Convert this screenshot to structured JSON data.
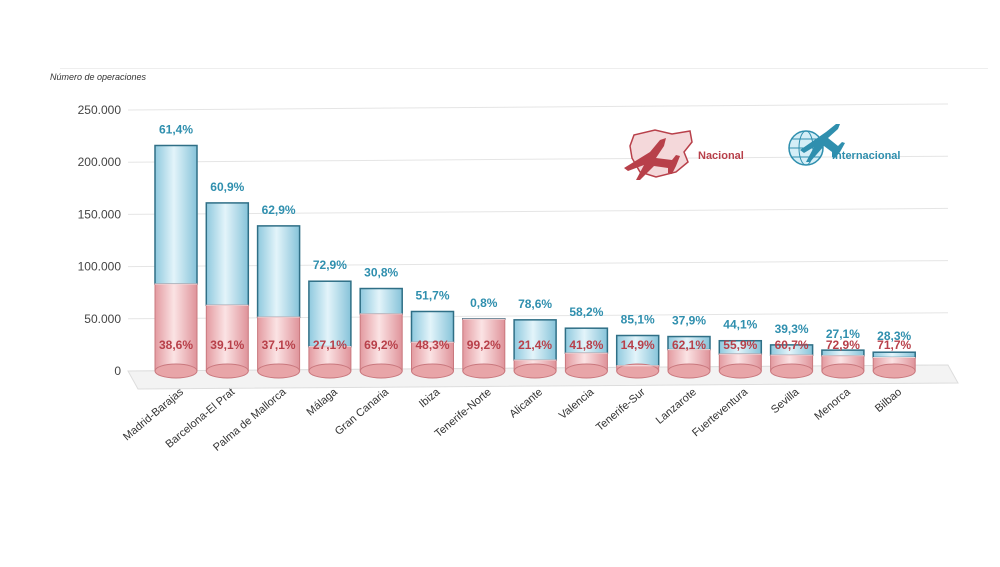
{
  "chart_data": {
    "type": "bar",
    "stacked": true,
    "ylabel": "Número de operaciones",
    "ylim": [
      0,
      250000
    ],
    "yticks": [
      0,
      50000,
      100000,
      150000,
      200000,
      250000
    ],
    "ytick_labels": [
      "0",
      "50.000",
      "100.000",
      "150.000",
      "200.000",
      "250.000"
    ],
    "grid": true,
    "legend_position": "top-right",
    "categories": [
      "Madrid-Barajas",
      "Barcelona-El Prat",
      "Palma de Mallorca",
      "Málaga",
      "Gran Canaria",
      "Ibiza",
      "Tenerife-Norte",
      "Alicante",
      "Valencia",
      "Tenerife-Sur",
      "Lanzarote",
      "Fuerteventura",
      "Sevilla",
      "Menorca",
      "Bilbao"
    ],
    "totals": [
      216000,
      161000,
      139000,
      86000,
      79000,
      57000,
      50000,
      49000,
      41000,
      34000,
      33000,
      29000,
      25000,
      20000,
      18000
    ],
    "series": [
      {
        "name": "Nacional",
        "color": "#e8a5a8",
        "labels": [
          "38,6%",
          "39,1%",
          "37,1%",
          "27,1%",
          "69,2%",
          "48,3%",
          "99,2%",
          "21,4%",
          "41,8%",
          "14,9%",
          "62,1%",
          "55,9%",
          "60,7%",
          "72,9%",
          "71,7%"
        ],
        "shares": [
          0.386,
          0.391,
          0.371,
          0.271,
          0.692,
          0.483,
          0.992,
          0.214,
          0.418,
          0.149,
          0.621,
          0.559,
          0.607,
          0.729,
          0.717
        ]
      },
      {
        "name": "Internacional",
        "color": "#a8d8e8",
        "labels": [
          "61,4%",
          "60,9%",
          "62,9%",
          "72,9%",
          "30,8%",
          "51,7%",
          "0,8%",
          "78,6%",
          "58,2%",
          "85,1%",
          "37,9%",
          "44,1%",
          "39,3%",
          "27,1%",
          "28,3%"
        ],
        "shares": [
          0.614,
          0.609,
          0.629,
          0.729,
          0.308,
          0.517,
          0.008,
          0.786,
          0.582,
          0.851,
          0.379,
          0.441,
          0.393,
          0.271,
          0.283
        ]
      }
    ]
  },
  "legend": {
    "nacional_label": "Nacional",
    "internacional_label": "Internacional",
    "nacional_icon": "spain-map-plane-icon",
    "internacional_icon": "globe-plane-icon"
  }
}
